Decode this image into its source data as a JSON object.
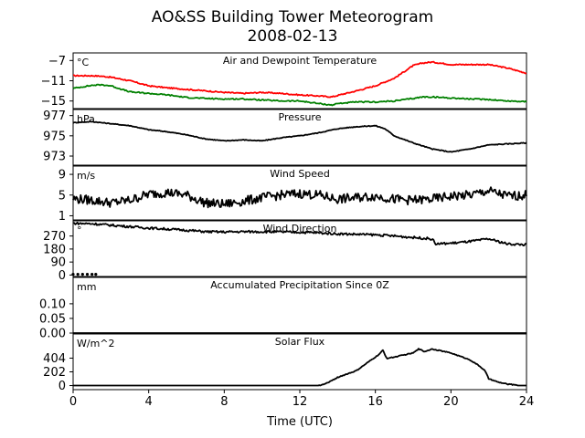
{
  "figure": {
    "title": "AO&SS Building Tower Meteorogram",
    "subtitle": "2008-02-13",
    "xlabel": "Time (UTC)"
  },
  "chart_data": [
    {
      "id": "temperature",
      "type": "line",
      "title": "Air and Dewpoint Temperature",
      "unit": "°C",
      "ylim": [
        -16.5,
        -5.5
      ],
      "yticks": [
        -7,
        -11,
        -15
      ],
      "yticklabels": [
        "−7",
        "−11",
        "−15"
      ],
      "x": [
        0,
        1,
        1.5,
        2,
        3,
        4,
        5,
        6,
        7,
        8,
        9,
        10,
        11,
        12,
        13,
        13.7,
        14,
        15,
        16,
        17,
        18,
        18.5,
        19,
        20,
        21,
        22,
        23,
        24
      ],
      "series": [
        {
          "color": "#ff0000",
          "values": [
            -10,
            -10,
            -10.1,
            -10.3,
            -11,
            -12,
            -12.4,
            -12.7,
            -13,
            -13.3,
            -13.5,
            -13.3,
            -13.5,
            -13.8,
            -14,
            -14.2,
            -13.9,
            -13,
            -12,
            -10.5,
            -8,
            -7.5,
            -7.3,
            -7.8,
            -7.8,
            -7.8,
            -8.5,
            -9.5
          ]
        },
        {
          "color": "#008000",
          "values": [
            -12.5,
            -11.9,
            -11.8,
            -12,
            -13.2,
            -13.5,
            -13.8,
            -14.3,
            -14.5,
            -14.6,
            -14.6,
            -14.8,
            -15,
            -15,
            -15.5,
            -15.8,
            -15.5,
            -15.2,
            -15.2,
            -15,
            -14.5,
            -14.2,
            -14.2,
            -14.4,
            -14.6,
            -14.7,
            -15,
            -15.1
          ]
        }
      ]
    },
    {
      "id": "pressure",
      "type": "line",
      "title": "Pressure",
      "unit": "hPa",
      "ylim": [
        972.1,
        977.6
      ],
      "yticks": [
        977,
        975,
        973
      ],
      "yticklabels": [
        "977",
        "975",
        "973"
      ],
      "x": [
        0,
        1,
        2,
        3,
        4,
        5,
        6,
        7,
        8,
        9,
        10,
        11,
        12,
        13,
        14,
        15,
        16,
        16.5,
        17,
        18,
        19,
        20,
        21,
        22,
        23,
        24
      ],
      "series": [
        {
          "color": "#000000",
          "values": [
            976.3,
            976.4,
            976.2,
            976,
            975.6,
            975.4,
            975.1,
            974.7,
            974.5,
            974.6,
            974.5,
            974.8,
            975,
            975.3,
            975.7,
            975.9,
            976,
            975.7,
            975,
            974.3,
            973.7,
            973.4,
            973.7,
            974.1,
            974.2,
            974.3
          ]
        }
      ]
    },
    {
      "id": "wind_speed",
      "type": "line",
      "title": "Wind Speed",
      "unit": "m/s",
      "ylim": [
        0.2,
        10.6
      ],
      "yticks": [
        9,
        5,
        1
      ],
      "yticklabels": [
        "9",
        "5",
        "1"
      ],
      "x": [
        0,
        1,
        2,
        3,
        4,
        5,
        6,
        7,
        8,
        9,
        10,
        11,
        12,
        13,
        14,
        15,
        16,
        17,
        18,
        19,
        20,
        21,
        22,
        23,
        24
      ],
      "series": [
        {
          "color": "#000000",
          "values": [
            4.3,
            4,
            3.5,
            4,
            5.2,
            5.5,
            5,
            3.5,
            3.2,
            3.8,
            4.5,
            5,
            5.3,
            5,
            4.2,
            4.5,
            4.8,
            4.2,
            4,
            4.2,
            4.8,
            5,
            5.8,
            4.8,
            5
          ]
        }
      ]
    },
    {
      "id": "wind_direction",
      "type": "line",
      "title": "Wind Direction",
      "unit": "°",
      "ylim": [
        -10,
        375
      ],
      "yticks": [
        270,
        180,
        90,
        0
      ],
      "yticklabels": [
        "270",
        "180",
        "90",
        "0"
      ],
      "x": [
        0,
        1,
        2,
        3,
        4,
        5,
        6,
        7,
        8,
        9,
        10,
        11,
        12,
        13,
        14,
        15,
        16,
        17,
        18,
        19,
        19.2,
        20,
        21,
        22,
        23,
        24
      ],
      "series": [
        {
          "color": "#000000",
          "values": [
            358,
            355,
            345,
            335,
            325,
            318,
            310,
            300,
            298,
            300,
            300,
            298,
            296,
            292,
            285,
            282,
            278,
            270,
            260,
            250,
            215,
            220,
            232,
            250,
            215,
            210
          ]
        }
      ],
      "scatter": {
        "x": [
          0,
          0.25,
          0.5,
          0.75,
          1.0,
          1.2
        ],
        "y": [
          5,
          5,
          5,
          5,
          5,
          5
        ]
      }
    },
    {
      "id": "precipitation",
      "type": "line",
      "title": "Accumulated Precipitation Since 0Z",
      "unit": "mm",
      "ylim": [
        0,
        0.19
      ],
      "yticks": [
        0.1,
        0.05,
        0.0
      ],
      "yticklabels": [
        "0.10",
        "0.05",
        "0.00"
      ],
      "x": [
        0,
        24
      ],
      "series": [
        {
          "color": "#000000",
          "values": [
            0,
            0
          ]
        }
      ]
    },
    {
      "id": "solar",
      "type": "line",
      "title": "Solar Flux",
      "unit": "W/m^2",
      "ylim": [
        -60,
        760
      ],
      "yticks": [
        404,
        202,
        0
      ],
      "yticklabels": [
        "404",
        "202",
        "0"
      ],
      "x": [
        0,
        13,
        13.3,
        13.6,
        14,
        15,
        16,
        16.2,
        16.4,
        16.6,
        17,
        18,
        18.3,
        18.6,
        19,
        20,
        21,
        21.5,
        21.8,
        22,
        22.5,
        23,
        24
      ],
      "series": [
        {
          "color": "#000000",
          "values": [
            0,
            0,
            20,
            60,
            120,
            220,
            420,
            460,
            520,
            400,
            420,
            480,
            540,
            500,
            540,
            480,
            380,
            290,
            220,
            100,
            50,
            20,
            0
          ]
        }
      ]
    }
  ],
  "xaxis": {
    "xlim": [
      0,
      24
    ],
    "ticks": [
      0,
      4,
      8,
      12,
      16,
      20,
      24
    ],
    "ticklabels": [
      "0",
      "4",
      "8",
      "12",
      "16",
      "20",
      "24"
    ]
  }
}
